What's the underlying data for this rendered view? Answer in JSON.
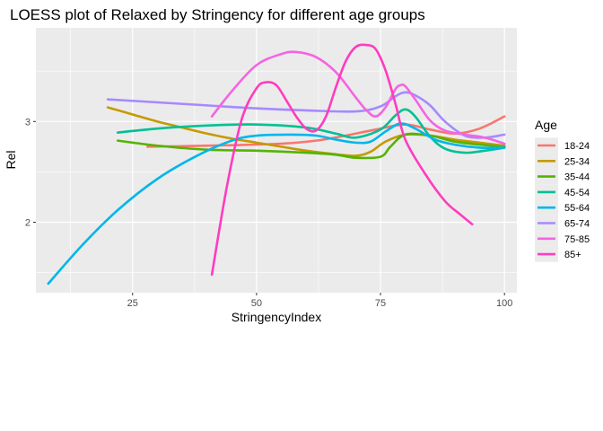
{
  "chart_data": {
    "type": "line",
    "title": "LOESS plot of Relaxed by Stringency for different age groups",
    "xlabel": "StringencyIndex",
    "ylabel": "Rel",
    "xlim": [
      5.5,
      102.5
    ],
    "ylim": [
      1.3,
      3.93
    ],
    "x_ticks": [
      25,
      50,
      75,
      100
    ],
    "y_ticks": [
      2,
      3
    ],
    "x_tick_labels": [
      "25",
      "50",
      "75",
      "100"
    ],
    "y_tick_labels": [
      "2",
      "3"
    ],
    "grid": true,
    "legend": {
      "title": "Age",
      "position": "right"
    },
    "series": [
      {
        "name": "18-24",
        "color": "#F8766D",
        "x": [
          28,
          35,
          45,
          55,
          62,
          68,
          74,
          80,
          85,
          90,
          95,
          100
        ],
        "y": [
          2.75,
          2.755,
          2.765,
          2.78,
          2.81,
          2.86,
          2.92,
          2.97,
          2.92,
          2.88,
          2.93,
          3.05
        ]
      },
      {
        "name": "25-34",
        "color": "#C49A00",
        "x": [
          20,
          25,
          30,
          35,
          40,
          45,
          50,
          55,
          60,
          65,
          70,
          73,
          76,
          80,
          85,
          90,
          95,
          100
        ],
        "y": [
          3.14,
          3.07,
          3.0,
          2.94,
          2.88,
          2.83,
          2.79,
          2.75,
          2.71,
          2.68,
          2.66,
          2.7,
          2.8,
          2.87,
          2.86,
          2.82,
          2.79,
          2.76
        ]
      },
      {
        "name": "35-44",
        "color": "#53B400",
        "x": [
          22,
          30,
          40,
          50,
          60,
          66,
          70,
          75,
          77,
          80,
          85,
          90,
          95,
          100
        ],
        "y": [
          2.81,
          2.76,
          2.72,
          2.71,
          2.69,
          2.67,
          2.64,
          2.65,
          2.75,
          2.87,
          2.86,
          2.8,
          2.77,
          2.75
        ]
      },
      {
        "name": "45-54",
        "color": "#00C094",
        "x": [
          22,
          30,
          40,
          50,
          60,
          66,
          70,
          75,
          78,
          80,
          82,
          85,
          88,
          92,
          96,
          100
        ],
        "y": [
          2.89,
          2.93,
          2.96,
          2.97,
          2.94,
          2.88,
          2.84,
          2.92,
          3.06,
          3.12,
          3.05,
          2.85,
          2.73,
          2.69,
          2.71,
          2.74
        ]
      },
      {
        "name": "55-64",
        "color": "#00B6EB",
        "x": [
          8,
          15,
          22,
          30,
          38,
          45,
          50,
          57,
          62,
          66,
          70,
          73,
          76,
          79,
          82,
          86,
          90,
          95,
          100
        ],
        "y": [
          1.39,
          1.78,
          2.12,
          2.43,
          2.66,
          2.81,
          2.86,
          2.87,
          2.86,
          2.82,
          2.79,
          2.8,
          2.9,
          2.98,
          2.93,
          2.82,
          2.77,
          2.74,
          2.74
        ]
      },
      {
        "name": "65-74",
        "color": "#A58AFF",
        "x": [
          20,
          30,
          40,
          50,
          60,
          70,
          75,
          78,
          80,
          82,
          85,
          88,
          92,
          96,
          100
        ],
        "y": [
          3.22,
          3.19,
          3.16,
          3.13,
          3.11,
          3.1,
          3.15,
          3.25,
          3.29,
          3.26,
          3.16,
          3.0,
          2.86,
          2.84,
          2.87
        ]
      },
      {
        "name": "75-85",
        "color": "#F564E3",
        "x": [
          41,
          45,
          50,
          55,
          58,
          62,
          66,
          70,
          72,
          74,
          76,
          78,
          79,
          80,
          82,
          85,
          88,
          92,
          96,
          100
        ],
        "y": [
          3.05,
          3.3,
          3.56,
          3.67,
          3.69,
          3.64,
          3.49,
          3.24,
          3.12,
          3.05,
          3.14,
          3.32,
          3.36,
          3.35,
          3.22,
          3.01,
          2.91,
          2.87,
          2.84,
          2.78
        ]
      },
      {
        "name": "85+",
        "color": "#FF3CBE",
        "x": [
          41,
          44,
          47,
          50,
          52,
          54,
          56,
          58,
          60,
          62,
          64,
          66,
          68,
          70,
          72,
          74,
          76,
          78,
          80,
          84,
          88,
          91,
          93.5
        ],
        "y": [
          1.48,
          2.35,
          3.02,
          3.33,
          3.39,
          3.36,
          3.21,
          3.05,
          2.93,
          2.91,
          3.05,
          3.34,
          3.6,
          3.74,
          3.76,
          3.72,
          3.51,
          3.18,
          2.82,
          2.48,
          2.21,
          2.08,
          1.98
        ]
      }
    ]
  }
}
